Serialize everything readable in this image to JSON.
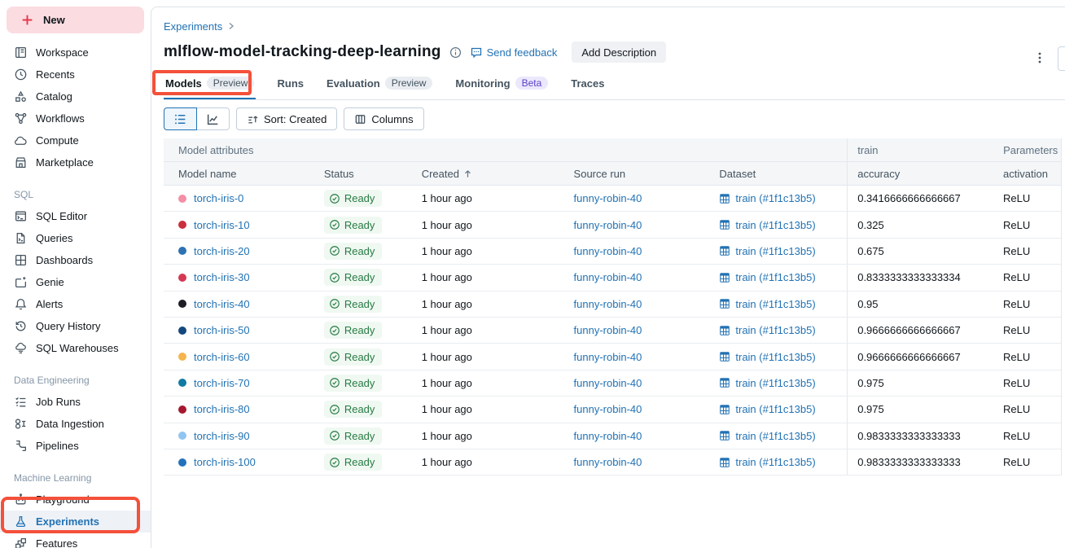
{
  "colors": {
    "annotation_red": "#F4503A",
    "link_blue": "#2272B4",
    "ready_green": "#277C43",
    "new_button_bg": "#FADCE1",
    "new_plus_red": "#E5394B"
  },
  "sidebar": {
    "new_label": "New",
    "sections": [
      {
        "label": "",
        "items": [
          {
            "label": "Workspace",
            "icon": "workspace"
          },
          {
            "label": "Recents",
            "icon": "recents"
          },
          {
            "label": "Catalog",
            "icon": "catalog"
          },
          {
            "label": "Workflows",
            "icon": "workflows"
          },
          {
            "label": "Compute",
            "icon": "compute"
          },
          {
            "label": "Marketplace",
            "icon": "marketplace"
          }
        ]
      },
      {
        "label": "SQL",
        "items": [
          {
            "label": "SQL Editor",
            "icon": "sql-editor"
          },
          {
            "label": "Queries",
            "icon": "queries"
          },
          {
            "label": "Dashboards",
            "icon": "dashboards"
          },
          {
            "label": "Genie",
            "icon": "genie"
          },
          {
            "label": "Alerts",
            "icon": "alerts"
          },
          {
            "label": "Query History",
            "icon": "query-history"
          },
          {
            "label": "SQL Warehouses",
            "icon": "sql-warehouses"
          }
        ]
      },
      {
        "label": "Data Engineering",
        "items": [
          {
            "label": "Job Runs",
            "icon": "job-runs"
          },
          {
            "label": "Data Ingestion",
            "icon": "data-ingestion"
          },
          {
            "label": "Pipelines",
            "icon": "pipelines"
          }
        ]
      },
      {
        "label": "Machine Learning",
        "items": [
          {
            "label": "Playground",
            "icon": "playground"
          },
          {
            "label": "Experiments",
            "icon": "experiments",
            "active": true
          },
          {
            "label": "Features",
            "icon": "features"
          }
        ]
      }
    ]
  },
  "header": {
    "breadcrumb": "Experiments",
    "title": "mlflow-model-tracking-deep-learning",
    "send_feedback": "Send feedback",
    "add_description": "Add Description"
  },
  "tabs": [
    {
      "label": "Models",
      "badge": "Preview",
      "badge_style": "preview",
      "active": true
    },
    {
      "label": "Runs"
    },
    {
      "label": "Evaluation",
      "badge": "Preview",
      "badge_style": "preview"
    },
    {
      "label": "Monitoring",
      "badge": "Beta",
      "badge_style": "beta"
    },
    {
      "label": "Traces"
    }
  ],
  "toolbar": {
    "sort_label": "Sort: Created",
    "columns_label": "Columns"
  },
  "table": {
    "groups": [
      "Model attributes",
      "train",
      "Parameters"
    ],
    "columns": [
      "Model name",
      "Status",
      "Created",
      "Source run",
      "Dataset",
      "accuracy",
      "activation"
    ],
    "sorted_column": "Created",
    "rows": [
      {
        "name": "torch-iris-0",
        "dot_color": "#F48FA5",
        "status": "Ready",
        "created": "1 hour ago",
        "source_run": "funny-robin-40",
        "dataset": "train (#1f1c13b5)",
        "accuracy": "0.3416666666666667",
        "activation": "ReLU"
      },
      {
        "name": "torch-iris-10",
        "dot_color": "#C9303E",
        "status": "Ready",
        "created": "1 hour ago",
        "source_run": "funny-robin-40",
        "dataset": "train (#1f1c13b5)",
        "accuracy": "0.325",
        "activation": "ReLU"
      },
      {
        "name": "torch-iris-20",
        "dot_color": "#2D72B2",
        "status": "Ready",
        "created": "1 hour ago",
        "source_run": "funny-robin-40",
        "dataset": "train (#1f1c13b5)",
        "accuracy": "0.675",
        "activation": "ReLU"
      },
      {
        "name": "torch-iris-30",
        "dot_color": "#D63854",
        "status": "Ready",
        "created": "1 hour ago",
        "source_run": "funny-robin-40",
        "dataset": "train (#1f1c13b5)",
        "accuracy": "0.8333333333333334",
        "activation": "ReLU"
      },
      {
        "name": "torch-iris-40",
        "dot_color": "#1D1D26",
        "status": "Ready",
        "created": "1 hour ago",
        "source_run": "funny-robin-40",
        "dataset": "train (#1f1c13b5)",
        "accuracy": "0.95",
        "activation": "ReLU"
      },
      {
        "name": "torch-iris-50",
        "dot_color": "#14477D",
        "status": "Ready",
        "created": "1 hour ago",
        "source_run": "funny-robin-40",
        "dataset": "train (#1f1c13b5)",
        "accuracy": "0.9666666666666667",
        "activation": "ReLU"
      },
      {
        "name": "torch-iris-60",
        "dot_color": "#F5B44C",
        "status": "Ready",
        "created": "1 hour ago",
        "source_run": "funny-robin-40",
        "dataset": "train (#1f1c13b5)",
        "accuracy": "0.9666666666666667",
        "activation": "ReLU"
      },
      {
        "name": "torch-iris-70",
        "dot_color": "#1179A2",
        "status": "Ready",
        "created": "1 hour ago",
        "source_run": "funny-robin-40",
        "dataset": "train (#1f1c13b5)",
        "accuracy": "0.975",
        "activation": "ReLU"
      },
      {
        "name": "torch-iris-80",
        "dot_color": "#A51830",
        "status": "Ready",
        "created": "1 hour ago",
        "source_run": "funny-robin-40",
        "dataset": "train (#1f1c13b5)",
        "accuracy": "0.975",
        "activation": "ReLU"
      },
      {
        "name": "torch-iris-90",
        "dot_color": "#90C5F2",
        "status": "Ready",
        "created": "1 hour ago",
        "source_run": "funny-robin-40",
        "dataset": "train (#1f1c13b5)",
        "accuracy": "0.9833333333333333",
        "activation": "ReLU"
      },
      {
        "name": "torch-iris-100",
        "dot_color": "#2271BB",
        "status": "Ready",
        "created": "1 hour ago",
        "source_run": "funny-robin-40",
        "dataset": "train (#1f1c13b5)",
        "accuracy": "0.9833333333333333",
        "activation": "ReLU"
      }
    ]
  }
}
